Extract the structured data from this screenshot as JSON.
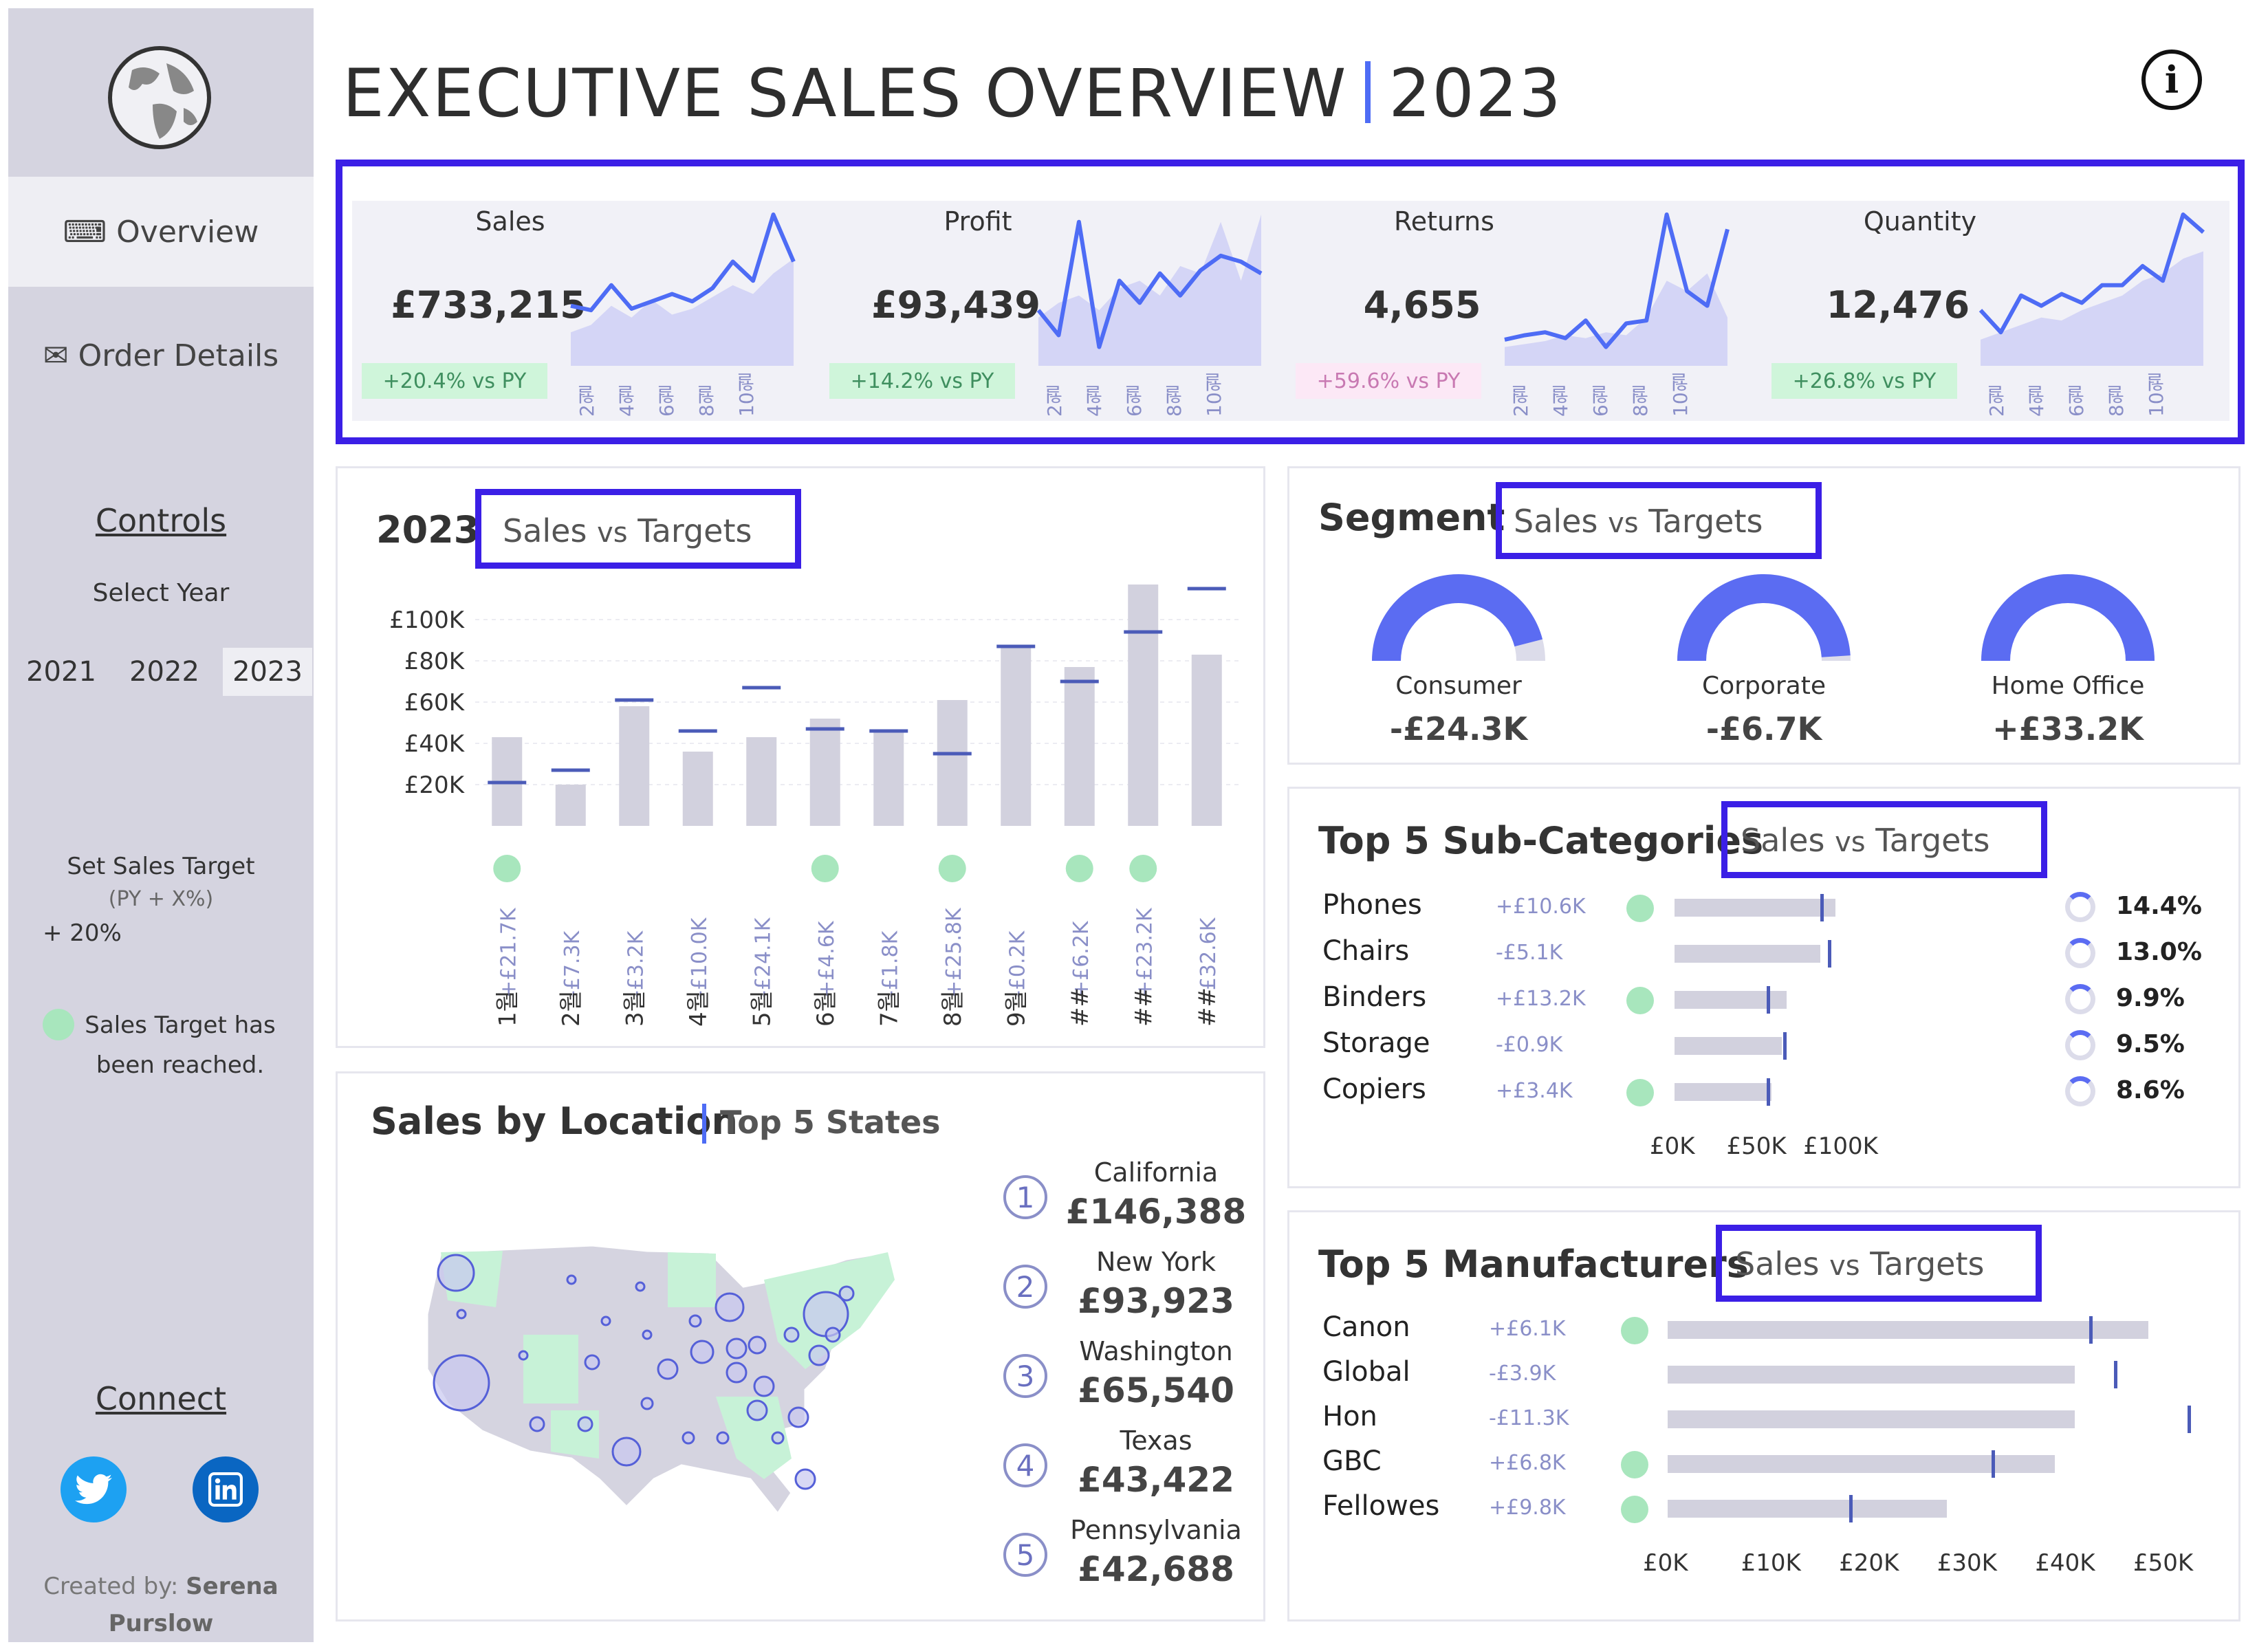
{
  "sidebar": {
    "nav": [
      {
        "icon": "keyboard-icon",
        "glyph": "⌨",
        "label": "Overview"
      },
      {
        "icon": "envelope-icon",
        "glyph": "✉",
        "label": "Order Details"
      }
    ],
    "controls_title": "Controls",
    "select_year_label": "Select Year",
    "years": [
      "2021",
      "2022",
      "2023"
    ],
    "selected_year": "2023",
    "target_label": "Set Sales Target",
    "target_sub": "(PY + X%)",
    "target_value": "+ 20%",
    "legend_text": "Sales Target has been reached.",
    "connect_title": "Connect",
    "credit_prefix": "Created by:",
    "credit_name": "Serena Purslow"
  },
  "header": {
    "title": "EXECUTIVE SALES OVERVIEW",
    "year": "2023",
    "info_glyph": "i",
    "accent": "#4e6cf5"
  },
  "kpis": [
    {
      "title": "Sales",
      "value": "£733,215",
      "change": "+20.4% vs PY",
      "positive": true,
      "spark": [
        38,
        35,
        52,
        36,
        41,
        46,
        41,
        50,
        68,
        55,
        100,
        68
      ],
      "spark_py": [
        20,
        25,
        38,
        30,
        42,
        32,
        36,
        44,
        52,
        46,
        60,
        70
      ]
    },
    {
      "title": "Profit",
      "value": "£93,439",
      "change": "+14.2% vs PY",
      "positive": true,
      "spark": [
        35,
        18,
        95,
        10,
        55,
        40,
        60,
        45,
        62,
        72,
        68,
        60
      ],
      "spark_py": [
        30,
        40,
        45,
        35,
        50,
        55,
        45,
        65,
        60,
        95,
        55,
        100
      ]
    },
    {
      "title": "Returns",
      "value": "4,655",
      "change": "+59.6% vs PY",
      "positive": false,
      "spark": [
        15,
        18,
        20,
        16,
        28,
        10,
        26,
        28,
        100,
        48,
        38,
        90
      ],
      "spark_py": [
        10,
        12,
        14,
        18,
        16,
        20,
        18,
        30,
        55,
        48,
        60,
        30
      ]
    },
    {
      "title": "Quantity",
      "value": "12,476",
      "change": "+26.8% vs PY",
      "positive": true,
      "spark": [
        35,
        20,
        45,
        38,
        46,
        40,
        52,
        52,
        65,
        55,
        100,
        88
      ],
      "spark_py": [
        15,
        20,
        25,
        30,
        28,
        35,
        40,
        45,
        55,
        60,
        70,
        75
      ]
    }
  ],
  "spark_months": [
    "2월",
    "4월",
    "6월",
    "8월",
    "10월"
  ],
  "monthly": {
    "year": "2023",
    "subtitle_a": "Sales",
    "subtitle_vs": "vs",
    "subtitle_b": "Targets",
    "y_ticks": [
      "£20K",
      "£40K",
      "£60K",
      "£80K",
      "£100K"
    ],
    "months": [
      "1월",
      "2월",
      "3월",
      "4월",
      "5월",
      "6월",
      "7월",
      "8월",
      "9월",
      "##",
      "##",
      "##"
    ],
    "sales": [
      43,
      20,
      58,
      36,
      43,
      52,
      46,
      61,
      87,
      77,
      117,
      83
    ],
    "targets": [
      21,
      27,
      61,
      46,
      67,
      47,
      46,
      35,
      87,
      70,
      94,
      115
    ],
    "variance": [
      "+£21.7K",
      "-£7.3K",
      "-£3.2K",
      "-£10.0K",
      "-£24.1K",
      "+£4.6K",
      "-£1.8K",
      "+£25.8K",
      "-£0.2K",
      "+£6.2K",
      "+£23.2K",
      "-£32.6K"
    ],
    "reached": [
      true,
      false,
      false,
      false,
      false,
      true,
      false,
      true,
      false,
      true,
      true,
      false
    ],
    "ymax": 120
  },
  "segment": {
    "title": "Segment",
    "subtitle_a": "Sales",
    "subtitle_vs": "vs",
    "subtitle_b": "Targets",
    "items": [
      {
        "name": "Consumer",
        "value": "-£24.3K",
        "fill": 0.92
      },
      {
        "name": "Corporate",
        "value": "-£6.7K",
        "fill": 0.98
      },
      {
        "name": "Home Office",
        "value": "+£33.2K",
        "fill": 1.0
      }
    ]
  },
  "subcats": {
    "title": "Top 5 Sub-Categories",
    "subtitle_a": "Sales",
    "subtitle_vs": "vs",
    "subtitle_b": "Targets",
    "x_ticks": [
      "£0K",
      "£50K",
      "£100K"
    ],
    "xmax": 130,
    "rows": [
      {
        "name": "Phones",
        "var": "+£10.6K",
        "reached": true,
        "sales": 105,
        "target": 95,
        "pct": "14.4%"
      },
      {
        "name": "Chairs",
        "var": "-£5.1K",
        "reached": false,
        "sales": 95,
        "target": 100,
        "pct": "13.0%"
      },
      {
        "name": "Binders",
        "var": "+£13.2K",
        "reached": true,
        "sales": 73,
        "target": 60,
        "pct": "9.9%"
      },
      {
        "name": "Storage",
        "var": "-£0.9K",
        "reached": false,
        "sales": 70,
        "target": 71,
        "pct": "9.5%"
      },
      {
        "name": "Copiers",
        "var": "+£3.4K",
        "reached": true,
        "sales": 63,
        "target": 60,
        "pct": "8.6%"
      }
    ]
  },
  "location": {
    "title": "Sales by Location",
    "subtitle": "Top 5 States",
    "states": [
      {
        "rank": "1",
        "name": "California",
        "value": "£146,388"
      },
      {
        "rank": "2",
        "name": "New York",
        "value": "£93,923"
      },
      {
        "rank": "3",
        "name": "Washington",
        "value": "£65,540"
      },
      {
        "rank": "4",
        "name": "Texas",
        "value": "£43,422"
      },
      {
        "rank": "5",
        "name": "Pennsylvania",
        "value": "£42,688"
      }
    ]
  },
  "manufacturers": {
    "title": "Top 5 Manufacturers",
    "subtitle_a": "Sales",
    "subtitle_vs": "vs",
    "subtitle_b": "Targets",
    "x_ticks": [
      "£0K",
      "£10K",
      "£20K",
      "£30K",
      "£40K",
      "£50K"
    ],
    "xmax": 54,
    "rows": [
      {
        "name": "Canon",
        "var": "+£6.1K",
        "reached": true,
        "sales": 49,
        "target": 43
      },
      {
        "name": "Global",
        "var": "-£3.9K",
        "reached": false,
        "sales": 41.5,
        "target": 45.5
      },
      {
        "name": "Hon",
        "var": "-£11.3K",
        "reached": false,
        "sales": 41.5,
        "target": 53
      },
      {
        "name": "GBC",
        "var": "+£6.8K",
        "reached": true,
        "sales": 39.5,
        "target": 33
      },
      {
        "name": "Fellowes",
        "var": "+£9.8K",
        "reached": true,
        "sales": 28.5,
        "target": 18.5
      }
    ]
  },
  "colors": {
    "accent": "#4e6cf5",
    "bar": "#d2d1de",
    "target": "#4b5bb8",
    "reached": "#a8e6bd",
    "highlight_border": "#3b1fe6"
  }
}
